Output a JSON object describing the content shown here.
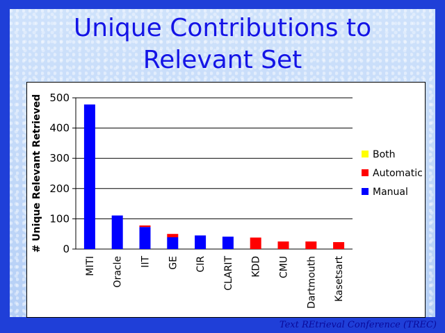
{
  "slide": {
    "title": "Unique Contributions to\nRelevant Set",
    "footer": "Text REtrieval Conference (TREC)"
  },
  "chart_data": {
    "type": "bar",
    "stacked": true,
    "title": "",
    "xlabel": "",
    "ylabel": "# Unique Relevant Retrieved",
    "ylim": [
      0,
      500
    ],
    "yticks": [
      0,
      100,
      200,
      300,
      400,
      500
    ],
    "grid": true,
    "legend": "right",
    "categories": [
      "MITI",
      "Oracle",
      "IIT",
      "GE",
      "CIR",
      "CLARIT",
      "KDD",
      "CMU",
      "Dartmouth",
      "Kasetsart"
    ],
    "series": [
      {
        "name": "Manual",
        "color": "#0000ff",
        "values": [
          478,
          111,
          73,
          39,
          45,
          41,
          0,
          0,
          0,
          0
        ]
      },
      {
        "name": "Automatic",
        "color": "#ff0000",
        "values": [
          0,
          0,
          5,
          11,
          0,
          0,
          38,
          25,
          25,
          23
        ]
      },
      {
        "name": "Both",
        "color": "#ffff00",
        "values": [
          0,
          0,
          0,
          0,
          0,
          0,
          0,
          0,
          0,
          0
        ]
      }
    ],
    "legend_order": [
      "Both",
      "Automatic",
      "Manual"
    ]
  }
}
